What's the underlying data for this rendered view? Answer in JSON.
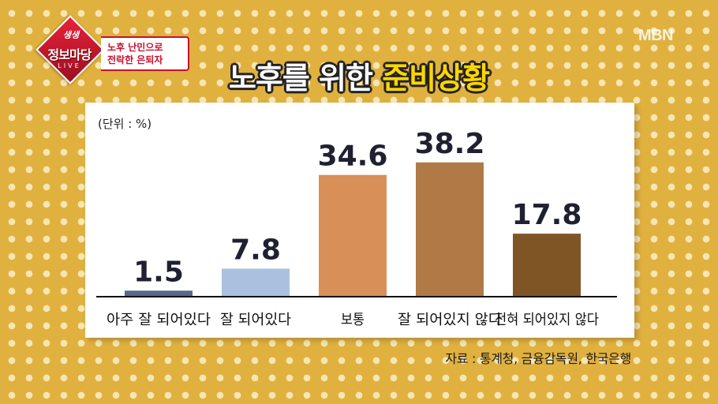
{
  "broadcast": {
    "logo_top": "생생",
    "logo_main": "정보마당",
    "logo_live": "LIVE",
    "subtitle_line1": "노후 난민으로",
    "subtitle_line2": "전락한 은퇴자",
    "channel": "MBN"
  },
  "headline": {
    "part1": "노후를 위한 ",
    "part2": "준비상황"
  },
  "chart_data": {
    "type": "bar",
    "unit_label": "(단위 : %)",
    "categories": [
      "아주 잘 되어있다",
      "잘 되어있다",
      "보통",
      "잘 되어있지 않다",
      "전혀 되어있지 않다"
    ],
    "values": [
      1.5,
      7.8,
      34.6,
      38.2,
      17.8
    ],
    "value_labels": [
      "1.5",
      "7.8",
      "34.6",
      "38.2",
      "17.8"
    ],
    "colors": [
      "#56698a",
      "#a9c1de",
      "#d98f58",
      "#b07a46",
      "#7f5526"
    ],
    "source": "자료 : 통계청, 금융감독원, 한국은행"
  }
}
